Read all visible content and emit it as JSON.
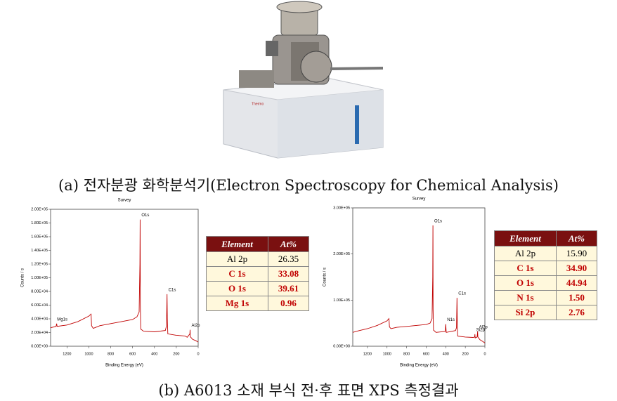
{
  "caption_a": "(a) 전자분광 화학분석기(Electron Spectroscopy for Chemical Analysis)",
  "caption_b": "(b) A6013 소재 부식 전·후 표면 XPS 측정결과",
  "chart_data": [
    {
      "type": "line",
      "title": "Survey",
      "x_label": "Binding Energy (eV)",
      "y_label": "Counts / s",
      "color": "#c00000",
      "x": [
        1350,
        1300,
        1295,
        1290,
        1200,
        1100,
        1000,
        980,
        975,
        960,
        900,
        800,
        700,
        600,
        560,
        540,
        533,
        531,
        529,
        525,
        500,
        400,
        300,
        290,
        285,
        282,
        278,
        200,
        120,
        100,
        76,
        74,
        72,
        50,
        20,
        0
      ],
      "values": [
        27000,
        29000,
        33000,
        29000,
        31000,
        36000,
        44000,
        47000,
        30000,
        26000,
        30000,
        33000,
        36000,
        39000,
        43000,
        50000,
        120000,
        185000,
        60000,
        25000,
        22000,
        21000,
        23000,
        30000,
        76000,
        40000,
        18000,
        16000,
        15000,
        13000,
        18000,
        24000,
        14000,
        10000,
        8000,
        6000
      ],
      "xlim": [
        1350,
        0
      ],
      "xticks": [
        1200,
        1000,
        800,
        600,
        400,
        200,
        0
      ],
      "ylim": [
        0,
        200000
      ],
      "yticks": [
        {
          "value": 0,
          "label": "0.00E+00"
        },
        {
          "value": 20000,
          "label": "2.00E+04"
        },
        {
          "value": 40000,
          "label": "4.00E+04"
        },
        {
          "value": 60000,
          "label": "6.00E+04"
        },
        {
          "value": 80000,
          "label": "8.00E+04"
        },
        {
          "value": 100000,
          "label": "1.00E+05"
        },
        {
          "value": 120000,
          "label": "1.20E+05"
        },
        {
          "value": 140000,
          "label": "1.40E+05"
        },
        {
          "value": 160000,
          "label": "1.60E+05"
        },
        {
          "value": 180000,
          "label": "1.80E+05"
        },
        {
          "value": 200000,
          "label": "2.00E+05"
        }
      ],
      "annotations": [
        {
          "text": "O1s",
          "x": 531,
          "y": 185000
        },
        {
          "text": "C1s",
          "x": 285,
          "y": 76000
        },
        {
          "text": "Mg1s",
          "x": 1303,
          "y": 33000
        },
        {
          "text": "Al2p",
          "x": 74,
          "y": 24000
        }
      ]
    },
    {
      "type": "line",
      "title": "Survey",
      "x_label": "Binding Energy (eV)",
      "y_label": "Counts / s",
      "color": "#c00000",
      "x": [
        1350,
        1300,
        1200,
        1100,
        1000,
        980,
        975,
        960,
        900,
        800,
        700,
        600,
        560,
        540,
        533,
        531,
        529,
        525,
        500,
        405,
        400,
        395,
        300,
        290,
        285,
        282,
        278,
        200,
        120,
        105,
        102,
        99,
        80,
        76,
        74,
        72,
        50,
        20,
        0
      ],
      "values": [
        30000,
        33000,
        38000,
        45000,
        55000,
        60000,
        42000,
        38000,
        41000,
        43000,
        45000,
        47000,
        50000,
        60000,
        150000,
        262000,
        80000,
        35000,
        30000,
        32000,
        48000,
        30000,
        34000,
        40000,
        105000,
        50000,
        22000,
        20000,
        19000,
        20000,
        26000,
        18000,
        20000,
        27000,
        32000,
        20000,
        14000,
        10000,
        7000
      ],
      "xlim": [
        1350,
        0
      ],
      "xticks": [
        1200,
        1000,
        800,
        600,
        400,
        200,
        0
      ],
      "ylim": [
        0,
        300000
      ],
      "yticks": [
        {
          "value": 0,
          "label": "0.00E+00"
        },
        {
          "value": 100000,
          "label": "1.00E+05"
        },
        {
          "value": 200000,
          "label": "2.00E+05"
        },
        {
          "value": 300000,
          "label": "3.00E+05"
        }
      ],
      "annotations": [
        {
          "text": "O1s",
          "x": 531,
          "y": 262000
        },
        {
          "text": "C1s",
          "x": 285,
          "y": 105000
        },
        {
          "text": "N1s",
          "x": 400,
          "y": 48000
        },
        {
          "text": "Al2p",
          "x": 74,
          "y": 32000
        },
        {
          "text": "Si2p",
          "x": 102,
          "y": 26000
        }
      ]
    }
  ],
  "tables": [
    {
      "header": [
        "Element",
        "At%"
      ],
      "rows": [
        [
          "Al 2p",
          "26.35"
        ],
        [
          "C 1s",
          "33.08"
        ],
        [
          "O 1s",
          "39.61"
        ],
        [
          "Mg 1s",
          "0.96"
        ]
      ]
    },
    {
      "header": [
        "Element",
        "At%"
      ],
      "rows": [
        [
          "Al 2p",
          "15.90"
        ],
        [
          "C 1s",
          "34.90"
        ],
        [
          "O 1s",
          "44.94"
        ],
        [
          "N 1s",
          "1.50"
        ],
        [
          "Si 2p",
          "2.76"
        ]
      ]
    }
  ]
}
